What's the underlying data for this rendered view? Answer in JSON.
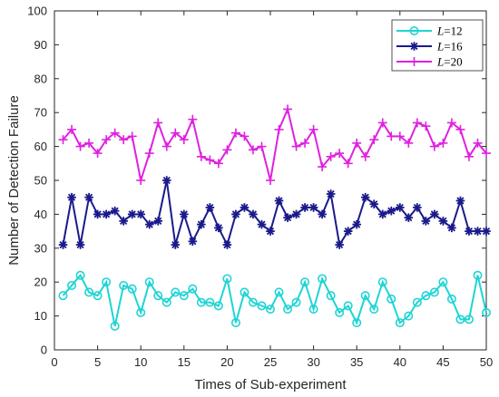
{
  "chart_data": {
    "type": "line",
    "xlabel": "Times of Sub-experiment",
    "ylabel": "Number of Detection Failure",
    "xlim": [
      0,
      50
    ],
    "ylim": [
      0,
      100
    ],
    "xticks": [
      0,
      5,
      10,
      15,
      20,
      25,
      30,
      35,
      40,
      45,
      50
    ],
    "yticks": [
      0,
      10,
      20,
      30,
      40,
      50,
      60,
      70,
      80,
      90,
      100
    ],
    "grid": false,
    "legend_position": "top-right",
    "x": [
      1,
      2,
      3,
      4,
      5,
      6,
      7,
      8,
      9,
      10,
      11,
      12,
      13,
      14,
      15,
      16,
      17,
      18,
      19,
      20,
      21,
      22,
      23,
      24,
      25,
      26,
      27,
      28,
      29,
      30,
      31,
      32,
      33,
      34,
      35,
      36,
      37,
      38,
      39,
      40,
      41,
      42,
      43,
      44,
      45,
      46,
      47,
      48,
      49,
      50
    ],
    "series": [
      {
        "name": "L=12",
        "name_italic": "L",
        "name_rest": "=12",
        "color": "#1fd4d4",
        "marker": "circle",
        "values": [
          16,
          19,
          22,
          17,
          16,
          20,
          7,
          19,
          18,
          11,
          20,
          16,
          14,
          17,
          16,
          18,
          14,
          14,
          13,
          21,
          8,
          17,
          14,
          13,
          12,
          17,
          12,
          14,
          20,
          12,
          21,
          16,
          11,
          13,
          8,
          16,
          12,
          20,
          15,
          8,
          10,
          14,
          16,
          17,
          20,
          15,
          9,
          9,
          22,
          11
        ]
      },
      {
        "name": "L=16",
        "name_italic": "L",
        "name_rest": "=16",
        "color": "#1a1a8c",
        "marker": "asterisk",
        "values": [
          31,
          45,
          31,
          45,
          40,
          40,
          41,
          38,
          40,
          40,
          37,
          38,
          50,
          31,
          40,
          32,
          37,
          42,
          36,
          31,
          40,
          42,
          40,
          37,
          35,
          44,
          39,
          40,
          42,
          42,
          40,
          46,
          31,
          35,
          37,
          45,
          43,
          40,
          41,
          42,
          39,
          42,
          38,
          40,
          38,
          36,
          44,
          35,
          35,
          35
        ]
      },
      {
        "name": "L=20",
        "name_italic": "L",
        "name_rest": "=20",
        "color": "#e020e0",
        "marker": "plus",
        "values": [
          62,
          65,
          60,
          61,
          58,
          62,
          64,
          62,
          63,
          50,
          58,
          67,
          60,
          64,
          62,
          68,
          57,
          56,
          55,
          59,
          64,
          63,
          59,
          60,
          50,
          65,
          71,
          60,
          61,
          65,
          54,
          57,
          58,
          55,
          61,
          57,
          62,
          67,
          63,
          63,
          61,
          67,
          66,
          60,
          61,
          67,
          65,
          57,
          61,
          58
        ]
      }
    ]
  }
}
